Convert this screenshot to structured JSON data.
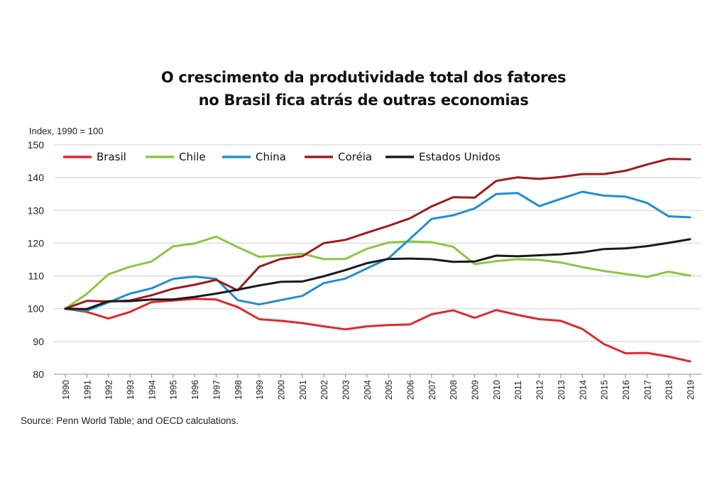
{
  "title_lines": [
    "O crescimento da produtividade total dos fatores",
    "no Brasil fica atrás de outras economias"
  ],
  "source": "Source: Penn World Table; and OECD calculations.",
  "chart_data": {
    "type": "line",
    "title": "O crescimento da produtividade total dos fatores no Brasil fica atrás de outras economias",
    "ylabel": "Index, 1990 = 100",
    "xlabel": "",
    "ylim": [
      80,
      150
    ],
    "yticks": [
      80,
      90,
      100,
      110,
      120,
      130,
      140,
      150
    ],
    "grid": "horizontal",
    "legend_position": "top-left",
    "x": [
      1990,
      1991,
      1992,
      1993,
      1994,
      1995,
      1996,
      1997,
      1998,
      1999,
      2000,
      2001,
      2002,
      2003,
      2004,
      2005,
      2006,
      2007,
      2008,
      2009,
      2010,
      2011,
      2012,
      2013,
      2014,
      2015,
      2016,
      2017,
      2018,
      2019
    ],
    "series": [
      {
        "name": "Brasil",
        "color": "#e0282e",
        "values": [
          100,
          99,
          97,
          99,
          102,
          102.5,
          103,
          102.8,
          100.5,
          96.8,
          96.3,
          95.6,
          94.6,
          93.7,
          94.6,
          95,
          95.2,
          98.3,
          99.5,
          97.2,
          99.6,
          98.1,
          96.8,
          96.3,
          93.8,
          89.2,
          86.4,
          86.5,
          85.4,
          83.9
        ]
      },
      {
        "name": "Chile",
        "color": "#8cc63f",
        "values": [
          100,
          104.5,
          110.5,
          112.8,
          114.4,
          119,
          119.9,
          122,
          118.8,
          115.8,
          116.3,
          116.8,
          115.1,
          115.2,
          118.3,
          120.2,
          120.5,
          120.3,
          118.9,
          113.6,
          114.5,
          115.1,
          114.9,
          114.1,
          112.7,
          111.5,
          110.6,
          109.7,
          111.3,
          110.1
        ]
      },
      {
        "name": "China",
        "color": "#1f8fd0",
        "values": [
          100,
          99.4,
          101.9,
          104.6,
          106.2,
          109.1,
          109.8,
          109.1,
          102.6,
          101.3,
          102.6,
          103.9,
          107.8,
          109.2,
          112.3,
          115.4,
          121.3,
          127.4,
          128.5,
          130.6,
          135,
          135.3,
          131.3,
          133.5,
          135.7,
          134.5,
          134.2,
          132.3,
          128.2,
          127.9
        ]
      },
      {
        "name": "Coréia",
        "color": "#9b1c1f",
        "values": [
          100,
          102.4,
          102.2,
          102.5,
          104.1,
          106.1,
          107.3,
          108.8,
          105.6,
          112.8,
          115.2,
          116,
          120,
          121,
          123.2,
          125.3,
          127.6,
          131.2,
          134,
          133.9,
          139,
          140.1,
          139.6,
          140.2,
          141.1,
          141.1,
          142.1,
          144,
          145.7,
          145.6
        ]
      },
      {
        "name": "Estados Unidos",
        "color": "#1a1a1a",
        "values": [
          100,
          99.9,
          102.3,
          102.3,
          102.8,
          102.8,
          103.6,
          104.6,
          105.8,
          107.1,
          108.2,
          108.3,
          109.9,
          111.8,
          113.9,
          115.2,
          115.3,
          115.1,
          114.3,
          114.4,
          116.2,
          116,
          116.3,
          116.6,
          117.2,
          118.2,
          118.4,
          119.1,
          120.1,
          121.2
        ]
      }
    ]
  }
}
